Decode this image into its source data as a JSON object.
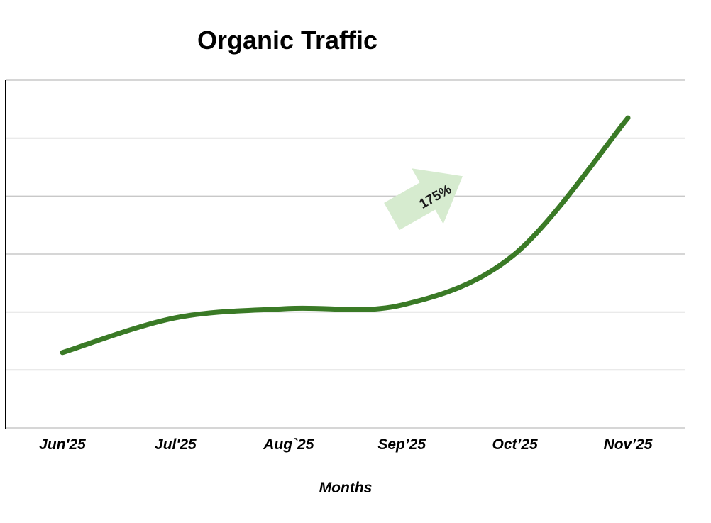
{
  "chart_data": {
    "type": "line",
    "title": "Organic Traffic",
    "xlabel": "Months",
    "ylabel": "",
    "categories": [
      "Jun'25",
      "Jul'25",
      "Aug`25",
      "Sep’25",
      "Oct’25",
      "Nov’25"
    ],
    "series": [
      {
        "values": [
          1.3,
          1.9,
          2.06,
          2.12,
          3.0,
          5.35
        ]
      }
    ],
    "ylim": [
      0,
      6
    ],
    "grid": true,
    "legend": "none",
    "annotations": [
      {
        "text": "175%",
        "shape": "arrow-up-right"
      }
    ],
    "colors": {
      "line": "#3a7a26",
      "arrow": "#d6ebcf",
      "grid": "#c8c8c8",
      "axis": "#000000"
    }
  }
}
